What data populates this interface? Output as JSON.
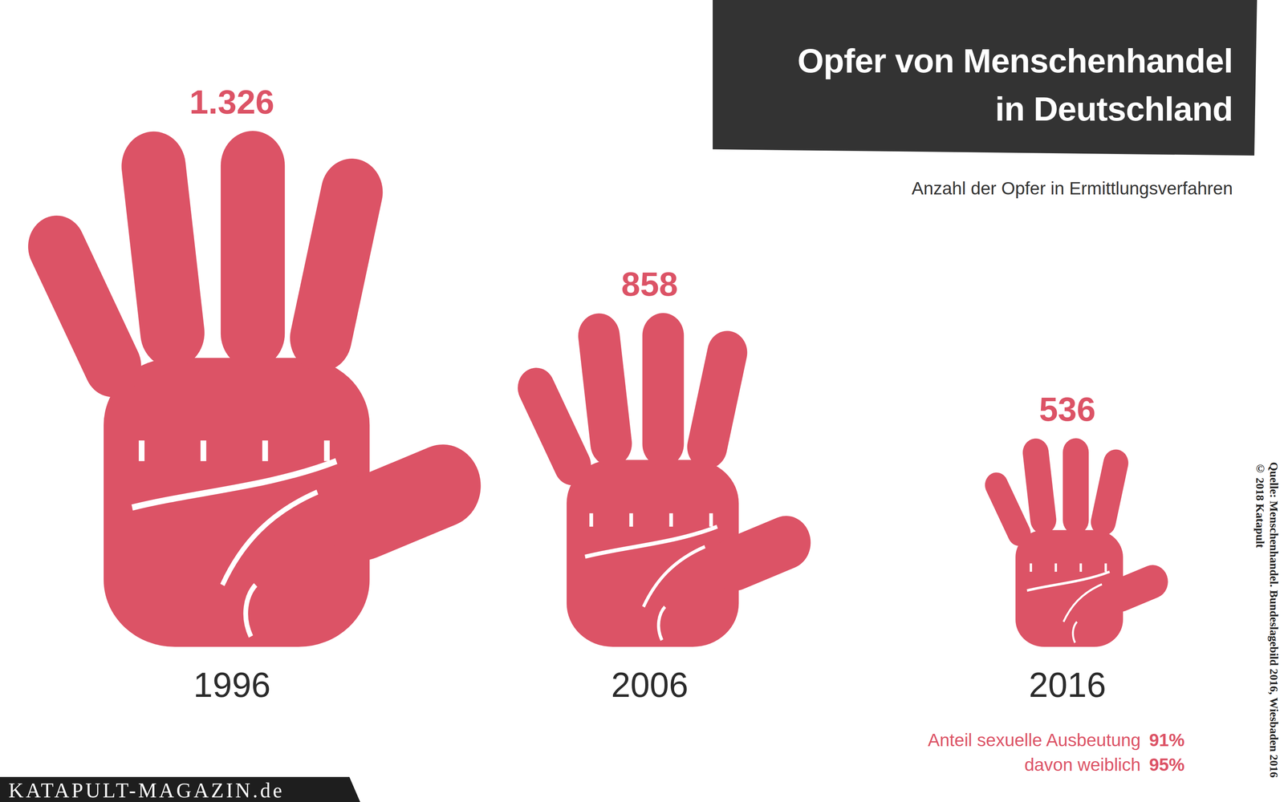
{
  "chart_data": {
    "type": "bar",
    "title": "Opfer von Menschenhandel\nin Deutschland",
    "subtitle": "Anzahl der Opfer in Ermittlungsverfahren",
    "categories": [
      "1996",
      "2006",
      "2016"
    ],
    "values": [
      1326,
      858,
      536
    ],
    "value_labels": [
      "1.326",
      "858",
      "536"
    ],
    "color": "#dc5366",
    "data_labels": true,
    "tick_labels": "x",
    "marker": "hand",
    "annotations": [
      {
        "text": "Anteil sexuelle Ausbeutung",
        "value_label": "91%"
      },
      {
        "text": "davon weiblich",
        "value_label": "95%"
      }
    ],
    "source": "Quelle: Menschenhandel. Bundeslagebild 2016, Wiesbaden 2016",
    "credit": "© 2018 Katapult",
    "footer": "KATAPULT-MAGAZIN.de"
  }
}
